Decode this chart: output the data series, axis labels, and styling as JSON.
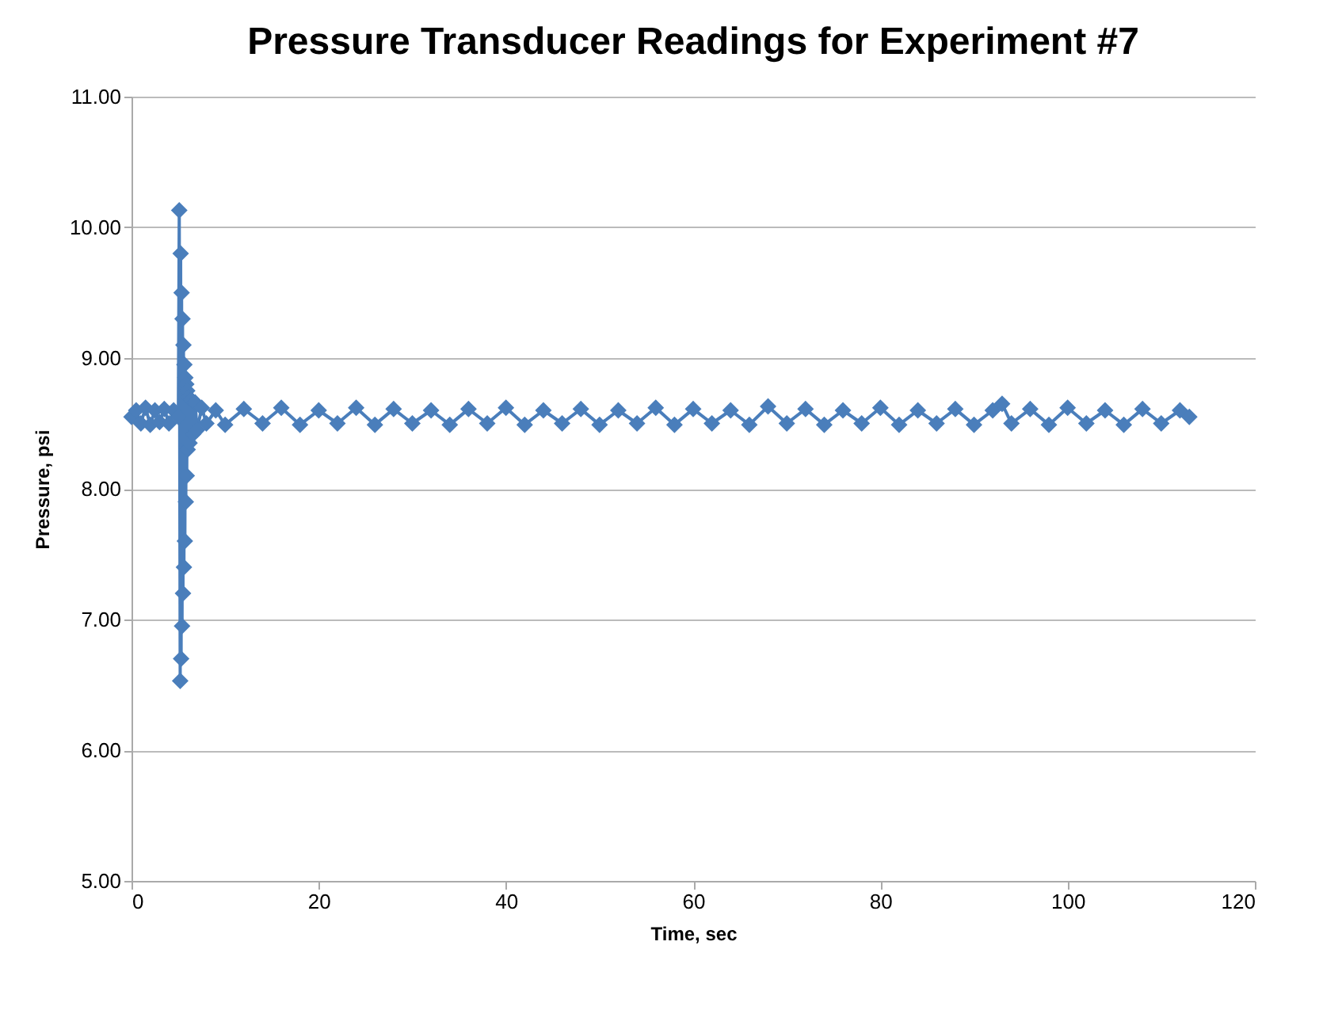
{
  "chart_data": {
    "type": "line",
    "title": "Pressure Transducer Readings for Experiment #7",
    "xlabel": "Time, sec",
    "ylabel": "Pressure, psi",
    "marker": "diamond",
    "line_style": "solid",
    "grid": "y",
    "xlim": [
      0,
      120
    ],
    "xticks": [
      0,
      20,
      40,
      60,
      80,
      100,
      120
    ],
    "ylim": [
      5,
      11
    ],
    "yticks": [
      {
        "value": 5,
        "label": "5.00"
      },
      {
        "value": 6,
        "label": "6.00"
      },
      {
        "value": 7,
        "label": "7.00"
      },
      {
        "value": 8,
        "label": "8.00"
      },
      {
        "value": 9,
        "label": "9.00"
      },
      {
        "value": 10,
        "label": "10.00"
      },
      {
        "value": 11,
        "label": "11.00"
      }
    ],
    "series": [
      {
        "color": "#4a7ebb",
        "x": [
          0,
          0.5,
          1,
          1.5,
          2,
          2.5,
          3,
          3.5,
          4,
          4.5,
          5,
          5.1,
          5.2,
          5.25,
          5.3,
          5.35,
          5.4,
          5.45,
          5.5,
          5.55,
          5.6,
          5.65,
          5.7,
          5.75,
          5.8,
          5.85,
          5.9,
          5.95,
          6,
          6.1,
          6.2,
          6.4,
          6.6,
          6.8,
          7,
          7.5,
          8,
          9,
          10,
          12,
          14,
          16,
          18,
          20,
          22,
          24,
          26,
          28,
          30,
          32,
          34,
          36,
          38,
          40,
          42,
          44,
          46,
          48,
          50,
          52,
          54,
          56,
          58,
          60,
          62,
          64,
          66,
          68,
          70,
          72,
          74,
          76,
          78,
          80,
          82,
          84,
          86,
          88,
          90,
          92,
          93,
          94,
          96,
          98,
          100,
          102,
          104,
          106,
          108,
          110,
          112,
          113
        ],
        "values": [
          8.55,
          8.6,
          8.5,
          8.62,
          8.49,
          8.6,
          8.51,
          8.61,
          8.5,
          8.6,
          8.55,
          10.13,
          6.53,
          9.8,
          6.7,
          9.5,
          6.95,
          9.3,
          7.2,
          9.1,
          7.4,
          8.95,
          7.6,
          8.85,
          7.9,
          8.8,
          8.1,
          8.75,
          8.3,
          8.7,
          8.35,
          8.68,
          8.42,
          8.66,
          8.45,
          8.62,
          8.5,
          8.6,
          8.49,
          8.61,
          8.5,
          8.62,
          8.49,
          8.6,
          8.5,
          8.62,
          8.49,
          8.61,
          8.5,
          8.6,
          8.49,
          8.61,
          8.5,
          8.62,
          8.49,
          8.6,
          8.5,
          8.61,
          8.49,
          8.6,
          8.5,
          8.62,
          8.49,
          8.61,
          8.5,
          8.6,
          8.49,
          8.63,
          8.5,
          8.61,
          8.49,
          8.6,
          8.5,
          8.62,
          8.49,
          8.6,
          8.5,
          8.61,
          8.49,
          8.6,
          8.65,
          8.5,
          8.61,
          8.49,
          8.62,
          8.5,
          8.6,
          8.49,
          8.61,
          8.5,
          8.6,
          8.55
        ]
      }
    ]
  }
}
